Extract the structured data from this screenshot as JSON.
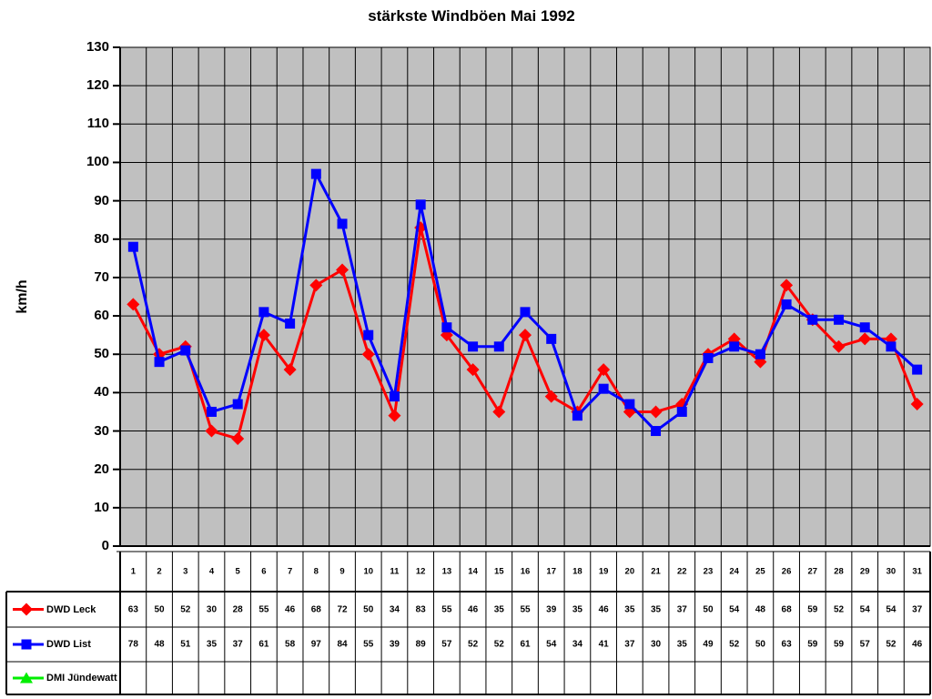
{
  "chart_data": {
    "type": "line",
    "title": "stärkste Windböen Mai 1992",
    "ylabel": "km/h",
    "ylim": [
      0,
      130
    ],
    "ytick_step": 10,
    "yticks": [
      0,
      10,
      20,
      30,
      40,
      50,
      60,
      70,
      80,
      90,
      100,
      110,
      120,
      130
    ],
    "grid": true,
    "legend_position": "table-left",
    "plot_bg": "#c0c0c0",
    "grid_color": "#000000",
    "axis_color": "#000000",
    "categories": [
      1,
      2,
      3,
      4,
      5,
      6,
      7,
      8,
      9,
      10,
      11,
      12,
      13,
      14,
      15,
      16,
      17,
      18,
      19,
      20,
      21,
      22,
      23,
      24,
      25,
      26,
      27,
      28,
      29,
      30,
      31
    ],
    "series": [
      {
        "name": "DWD Leck",
        "color": "#ff0000",
        "marker": "diamond",
        "values": [
          63,
          50,
          52,
          30,
          28,
          55,
          46,
          68,
          72,
          50,
          34,
          83,
          55,
          46,
          35,
          55,
          39,
          35,
          46,
          35,
          35,
          37,
          50,
          54,
          48,
          68,
          59,
          52,
          54,
          54,
          37
        ]
      },
      {
        "name": "DWD List",
        "color": "#0000ff",
        "marker": "square",
        "values": [
          78,
          48,
          51,
          35,
          37,
          61,
          58,
          97,
          84,
          55,
          39,
          89,
          57,
          52,
          52,
          61,
          54,
          34,
          41,
          37,
          30,
          35,
          49,
          52,
          50,
          63,
          59,
          59,
          57,
          52,
          46
        ]
      },
      {
        "name": "DMI Jündewatt",
        "color": "#00ee00",
        "marker": "triangle",
        "values": []
      }
    ]
  }
}
